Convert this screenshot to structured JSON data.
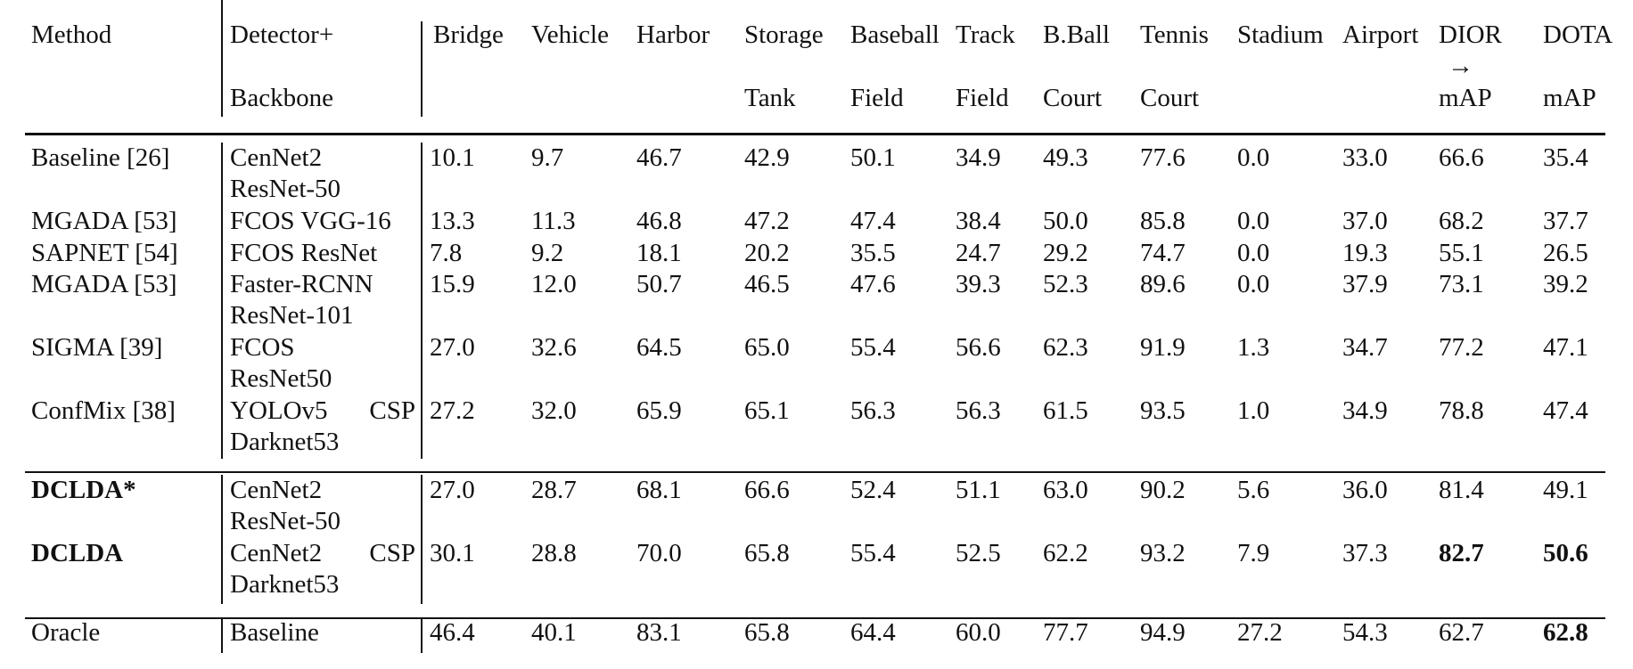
{
  "table": {
    "header": {
      "method": "Method",
      "detector_line1": "Detector+",
      "detector_line2": "Backbone",
      "classes": [
        {
          "line1": "Bridge",
          "line2": ""
        },
        {
          "line1": "Vehicle",
          "line2": ""
        },
        {
          "line1": "Harbor",
          "line2": ""
        },
        {
          "line1": "Storage",
          "line2": "Tank"
        },
        {
          "line1": "Baseball",
          "line2": "Field"
        },
        {
          "line1": "Track",
          "line2": "Field"
        },
        {
          "line1": "B.Ball",
          "line2": "Court"
        },
        {
          "line1": "Tennis",
          "line2": "Court"
        },
        {
          "line1": "Stadium",
          "line2": ""
        },
        {
          "line1": "Airport",
          "line2": ""
        }
      ],
      "dior_line1": "DIOR",
      "dior_arrow": "→",
      "dior_line2": "mAP",
      "dota_line1": "DOTA",
      "dota_line2": "mAP"
    },
    "rows": [
      {
        "method": "Baseline [26]",
        "detector1": "CenNet2",
        "detector2": "ResNet-50",
        "values": [
          "10.1",
          "9.7",
          "46.7",
          "42.9",
          "50.1",
          "34.9",
          "49.3",
          "77.6",
          "0.0",
          "33.0",
          "66.6",
          "35.4"
        ]
      },
      {
        "method": "MGADA [53]",
        "detector1": "FCOS VGG-16",
        "detector2": "",
        "values": [
          "13.3",
          "11.3",
          "46.8",
          "47.2",
          "47.4",
          "38.4",
          "50.0",
          "85.8",
          "0.0",
          "37.0",
          "68.2",
          "37.7"
        ]
      },
      {
        "method": "SAPNET [54]",
        "detector1": "FCOS ResNet",
        "detector2": "",
        "values": [
          "7.8",
          "9.2",
          "18.1",
          "20.2",
          "35.5",
          "24.7",
          "29.2",
          "74.7",
          "0.0",
          "19.3",
          "55.1",
          "26.5"
        ]
      },
      {
        "method": "MGADA [53]",
        "detector1": "Faster-RCNN",
        "detector2": "ResNet-101",
        "values": [
          "15.9",
          "12.0",
          "50.7",
          "46.5",
          "47.6",
          "39.3",
          "52.3",
          "89.6",
          "0.0",
          "37.9",
          "73.1",
          "39.2"
        ]
      },
      {
        "method": "SIGMA [39]",
        "detector1": "FCOS",
        "detector2": "ResNet50",
        "values": [
          "27.0",
          "32.6",
          "64.5",
          "65.0",
          "55.4",
          "56.6",
          "62.3",
          "91.9",
          "1.3",
          "34.7",
          "77.2",
          "47.1"
        ]
      },
      {
        "method": "ConfMix [38]",
        "detector1": "YOLOv5 CSP",
        "detector2": "Darknet53",
        "values": [
          "27.2",
          "32.0",
          "65.9",
          "65.1",
          "56.3",
          "56.3",
          "61.5",
          "93.5",
          "1.0",
          "34.9",
          "78.8",
          "47.4"
        ]
      },
      {
        "method": "DCLDA*",
        "detector1": "CenNet2",
        "detector2": "ResNet-50",
        "values": [
          "27.0",
          "28.7",
          "68.1",
          "66.6",
          "52.4",
          "51.1",
          "63.0",
          "90.2",
          "5.6",
          "36.0",
          "81.4",
          "49.1"
        ]
      },
      {
        "method": "DCLDA",
        "detector1": "CenNet2 CSP",
        "detector2": "Darknet53",
        "values": [
          "30.1",
          "28.8",
          "70.0",
          "65.8",
          "55.4",
          "52.5",
          "62.2",
          "93.2",
          "7.9",
          "37.3",
          "82.7",
          "50.6"
        ]
      },
      {
        "method": "Oracle",
        "detector1": "Baseline",
        "detector2": "",
        "values": [
          "46.4",
          "40.1",
          "83.1",
          "65.8",
          "64.4",
          "60.0",
          "77.7",
          "94.9",
          "27.2",
          "54.3",
          "62.7",
          "62.8"
        ]
      }
    ]
  }
}
